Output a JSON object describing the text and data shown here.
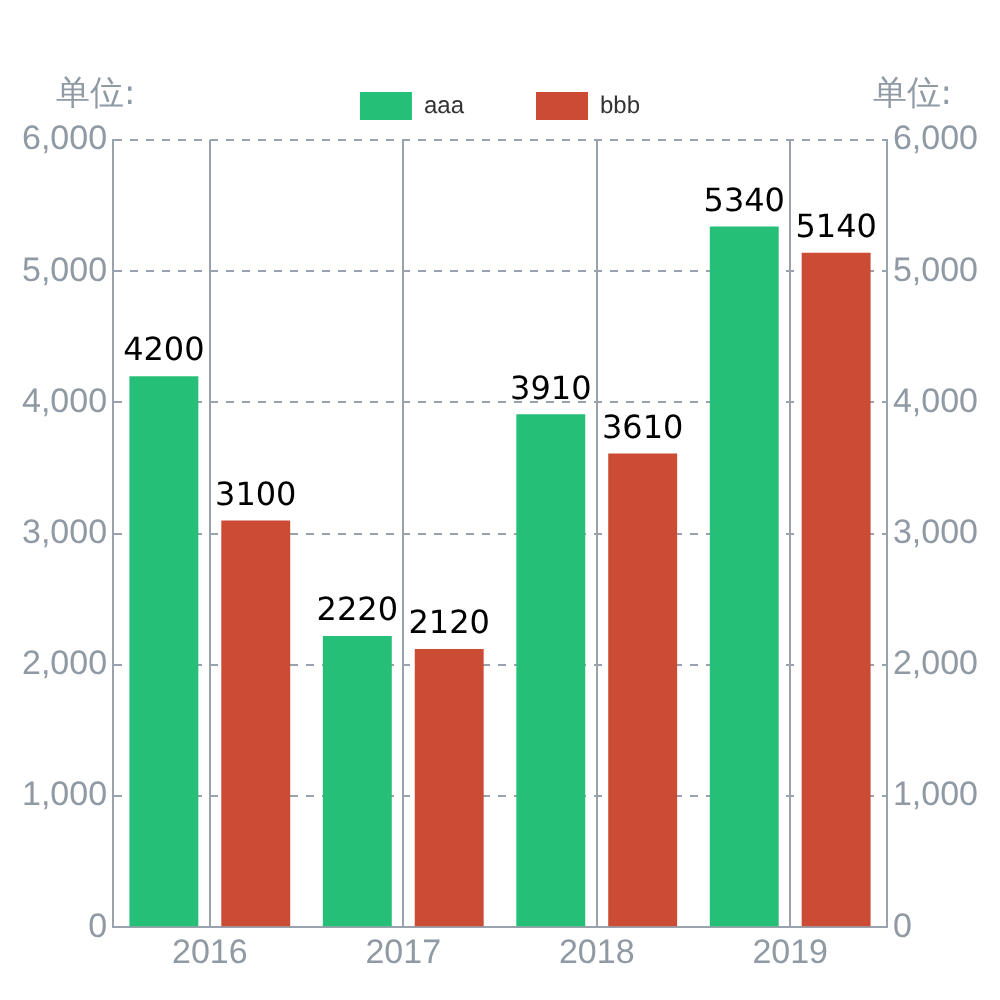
{
  "chart_data": {
    "type": "bar",
    "ylabel": "单位:",
    "y2label": "单位:",
    "categories": [
      "2016",
      "2017",
      "2018",
      "2019"
    ],
    "series": [
      {
        "name": "aaa",
        "color": "#26bf78",
        "values": [
          4200,
          2220,
          3910,
          5340
        ]
      },
      {
        "name": "bbb",
        "color": "#cc4b35",
        "values": [
          3100,
          2120,
          3610,
          5140
        ]
      }
    ],
    "ylim": [
      0,
      6000
    ],
    "yticks": [
      0,
      {
        "value": 1000,
        "label": "1,000"
      },
      {
        "value": 2000,
        "label": "2,000"
      },
      {
        "value": 3000,
        "label": "3,000"
      },
      {
        "value": 4000,
        "label": "4,000"
      },
      {
        "value": 5000,
        "label": "5,000"
      },
      {
        "value": 6000,
        "label": "6,000"
      }
    ],
    "y2lim": [
      0,
      6000
    ],
    "y2ticks": [
      0,
      {
        "value": 1000,
        "label": "1,000"
      },
      {
        "value": 2000,
        "label": "2,000"
      },
      {
        "value": 3000,
        "label": "3,000"
      },
      {
        "value": 4000,
        "label": "4,000"
      },
      {
        "value": 5000,
        "label": "5,000"
      },
      {
        "value": 6000,
        "label": "6,000"
      }
    ],
    "grid": true,
    "legend": "top",
    "data_labels": true
  }
}
